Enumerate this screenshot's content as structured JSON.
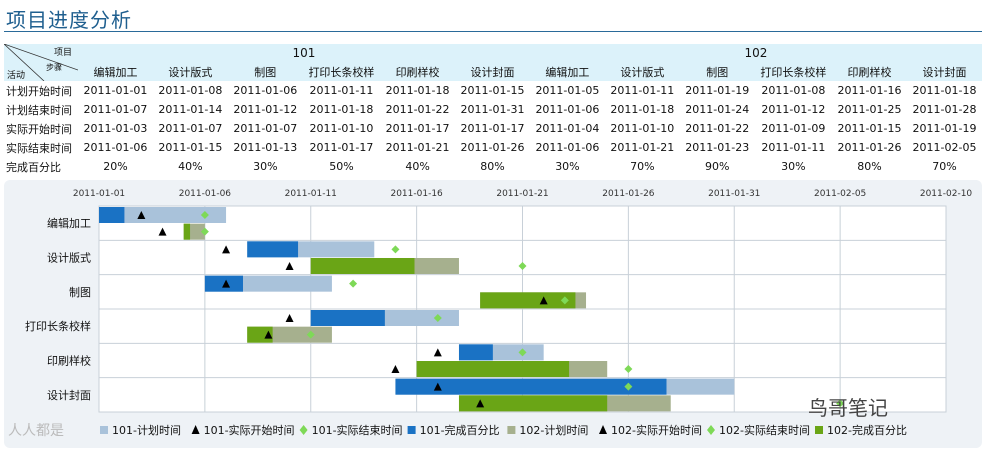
{
  "page": {
    "title": "项目进度分析"
  },
  "table": {
    "corner": {
      "project": "项目",
      "stage": "步骤",
      "activity": "活动"
    },
    "projects": [
      "101",
      "102"
    ],
    "stages": [
      "编辑加工",
      "设计版式",
      "制图",
      "打印长条校样",
      "印刷样校",
      "设计封面",
      "编辑加工",
      "设计版式",
      "制图",
      "打印长条校样",
      "印刷样校",
      "设计封面"
    ],
    "rows": [
      {
        "label": "计划开始时间",
        "values": [
          "2011-01-01",
          "2011-01-08",
          "2011-01-06",
          "2011-01-11",
          "2011-01-18",
          "2011-01-15",
          "2011-01-05",
          "2011-01-11",
          "2011-01-19",
          "2011-01-08",
          "2011-01-16",
          "2011-01-18"
        ]
      },
      {
        "label": "计划结束时间",
        "values": [
          "2011-01-07",
          "2011-01-14",
          "2011-01-12",
          "2011-01-18",
          "2011-01-22",
          "2011-01-31",
          "2011-01-06",
          "2011-01-18",
          "2011-01-24",
          "2011-01-12",
          "2011-01-25",
          "2011-01-28"
        ]
      },
      {
        "label": "实际开始时间",
        "values": [
          "2011-01-03",
          "2011-01-07",
          "2011-01-07",
          "2011-01-10",
          "2011-01-17",
          "2011-01-17",
          "2011-01-04",
          "2011-01-10",
          "2011-01-22",
          "2011-01-09",
          "2011-01-15",
          "2011-01-19"
        ]
      },
      {
        "label": "实际结束时间",
        "values": [
          "2011-01-06",
          "2011-01-15",
          "2011-01-13",
          "2011-01-17",
          "2011-01-21",
          "2011-01-26",
          "2011-01-06",
          "2011-01-21",
          "2011-01-23",
          "2011-01-11",
          "2011-01-26",
          "2011-02-05"
        ]
      },
      {
        "label": "完成百分比",
        "values": [
          "20%",
          "40%",
          "30%",
          "50%",
          "40%",
          "80%",
          "30%",
          "70%",
          "90%",
          "30%",
          "80%",
          "70%"
        ]
      }
    ]
  },
  "chart_data": {
    "type": "gantt",
    "x_ticks": [
      "2011-01-01",
      "2011-01-06",
      "2011-01-11",
      "2011-01-16",
      "2011-01-21",
      "2011-01-26",
      "2011-01-31",
      "2011-02-05",
      "2011-02-10"
    ],
    "xlim": [
      "2011-01-01",
      "2011-02-10"
    ],
    "categories": [
      "编辑加工",
      "设计版式",
      "制图",
      "打印长条校样",
      "印刷样校",
      "设计封面"
    ],
    "series": [
      {
        "project": "101",
        "plan_start": [
          "2011-01-01",
          "2011-01-08",
          "2011-01-06",
          "2011-01-11",
          "2011-01-18",
          "2011-01-15"
        ],
        "plan_end": [
          "2011-01-07",
          "2011-01-14",
          "2011-01-12",
          "2011-01-18",
          "2011-01-22",
          "2011-01-31"
        ],
        "actual_start": [
          "2011-01-03",
          "2011-01-07",
          "2011-01-07",
          "2011-01-10",
          "2011-01-17",
          "2011-01-17"
        ],
        "actual_end": [
          "2011-01-06",
          "2011-01-15",
          "2011-01-13",
          "2011-01-17",
          "2011-01-21",
          "2011-01-26"
        ],
        "percent": [
          20,
          40,
          30,
          50,
          40,
          80
        ]
      },
      {
        "project": "102",
        "plan_start": [
          "2011-01-05",
          "2011-01-11",
          "2011-01-19",
          "2011-01-08",
          "2011-01-16",
          "2011-01-18"
        ],
        "plan_end": [
          "2011-01-06",
          "2011-01-18",
          "2011-01-24",
          "2011-01-12",
          "2011-01-25",
          "2011-01-28"
        ],
        "actual_start": [
          "2011-01-04",
          "2011-01-10",
          "2011-01-22",
          "2011-01-09",
          "2011-01-15",
          "2011-01-19"
        ],
        "actual_end": [
          "2011-01-06",
          "2011-01-21",
          "2011-01-23",
          "2011-01-11",
          "2011-01-26",
          "2011-02-05"
        ],
        "percent": [
          30,
          70,
          90,
          30,
          80,
          70
        ]
      }
    ],
    "legend": [
      "101-计划时间",
      "101-实际开始时间",
      "101-实际结束时间",
      "101-完成百分比",
      "102-计划时间",
      "102-实际开始时间",
      "102-实际结束时间",
      "102-完成百分比"
    ],
    "colors": {
      "plan101": "#a9c2da",
      "done101": "#1a72c4",
      "plan102": "#a6b08e",
      "done102": "#6aa516",
      "start": "#000000",
      "end": "#7ed957"
    }
  },
  "watermark": {
    "right": "鸟哥笔记",
    "left": "人人都是"
  }
}
